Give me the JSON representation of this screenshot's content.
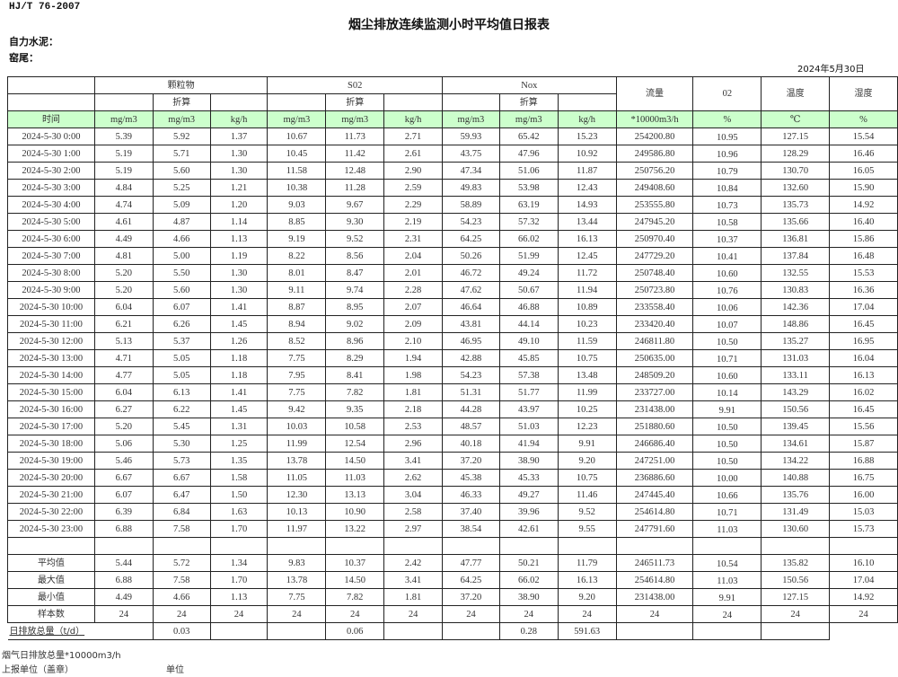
{
  "standard": "HJ/T  76-2007",
  "title": "烟尘排放连续监测小时平均值日报表",
  "company_label": "自力水泥：",
  "kiln_label": "窑尾：",
  "date": "2024年5月30日",
  "header": {
    "groups": [
      "颗粒物",
      "S02",
      "Nox"
    ],
    "converted": "折算",
    "single": [
      "流量",
      "02",
      "温度",
      "湿度"
    ],
    "units": [
      "时间",
      "mg/m3",
      "mg/m3",
      "kg/h",
      "mg/m3",
      "mg/m3",
      "kg/h",
      "mg/m3",
      "mg/m3",
      "kg/h",
      "*10000m3/h",
      "%",
      "℃",
      "%"
    ]
  },
  "rows": [
    [
      "2024-5-30 0:00",
      "5.39",
      "5.92",
      "1.37",
      "10.67",
      "11.73",
      "2.71",
      "59.93",
      "65.42",
      "15.23",
      "254200.80",
      "10.95",
      "127.15",
      "15.54"
    ],
    [
      "2024-5-30 1:00",
      "5.19",
      "5.71",
      "1.30",
      "10.45",
      "11.42",
      "2.61",
      "43.75",
      "47.96",
      "10.92",
      "249586.80",
      "10.96",
      "128.29",
      "16.46"
    ],
    [
      "2024-5-30 2:00",
      "5.19",
      "5.60",
      "1.30",
      "11.58",
      "12.48",
      "2.90",
      "47.34",
      "51.06",
      "11.87",
      "250756.20",
      "10.79",
      "130.70",
      "16.05"
    ],
    [
      "2024-5-30 3:00",
      "4.84",
      "5.25",
      "1.21",
      "10.38",
      "11.28",
      "2.59",
      "49.83",
      "53.98",
      "12.43",
      "249408.60",
      "10.84",
      "132.60",
      "15.90"
    ],
    [
      "2024-5-30 4:00",
      "4.74",
      "5.09",
      "1.20",
      "9.03",
      "9.67",
      "2.29",
      "58.89",
      "63.19",
      "14.93",
      "253555.80",
      "10.73",
      "135.73",
      "14.92"
    ],
    [
      "2024-5-30 5:00",
      "4.61",
      "4.87",
      "1.14",
      "8.85",
      "9.30",
      "2.19",
      "54.23",
      "57.32",
      "13.44",
      "247945.20",
      "10.58",
      "135.66",
      "16.40"
    ],
    [
      "2024-5-30 6:00",
      "4.49",
      "4.66",
      "1.13",
      "9.19",
      "9.52",
      "2.31",
      "64.25",
      "66.02",
      "16.13",
      "250970.40",
      "10.37",
      "136.81",
      "15.86"
    ],
    [
      "2024-5-30 7:00",
      "4.81",
      "5.00",
      "1.19",
      "8.22",
      "8.56",
      "2.04",
      "50.26",
      "51.99",
      "12.45",
      "247729.20",
      "10.41",
      "137.84",
      "16.48"
    ],
    [
      "2024-5-30 8:00",
      "5.20",
      "5.50",
      "1.30",
      "8.01",
      "8.47",
      "2.01",
      "46.72",
      "49.24",
      "11.72",
      "250748.40",
      "10.60",
      "132.55",
      "15.53"
    ],
    [
      "2024-5-30 9:00",
      "5.20",
      "5.60",
      "1.30",
      "9.11",
      "9.74",
      "2.28",
      "47.62",
      "50.67",
      "11.94",
      "250723.80",
      "10.76",
      "130.83",
      "16.36"
    ],
    [
      "2024-5-30 10:00",
      "6.04",
      "6.07",
      "1.41",
      "8.87",
      "8.95",
      "2.07",
      "46.64",
      "46.88",
      "10.89",
      "233558.40",
      "10.06",
      "142.36",
      "17.04"
    ],
    [
      "2024-5-30 11:00",
      "6.21",
      "6.26",
      "1.45",
      "8.94",
      "9.02",
      "2.09",
      "43.81",
      "44.14",
      "10.23",
      "233420.40",
      "10.07",
      "148.86",
      "16.45"
    ],
    [
      "2024-5-30 12:00",
      "5.13",
      "5.37",
      "1.26",
      "8.52",
      "8.96",
      "2.10",
      "46.95",
      "49.10",
      "11.59",
      "246811.80",
      "10.50",
      "135.27",
      "16.95"
    ],
    [
      "2024-5-30 13:00",
      "4.71",
      "5.05",
      "1.18",
      "7.75",
      "8.29",
      "1.94",
      "42.88",
      "45.85",
      "10.75",
      "250635.00",
      "10.71",
      "131.03",
      "16.04"
    ],
    [
      "2024-5-30 14:00",
      "4.77",
      "5.05",
      "1.18",
      "7.95",
      "8.41",
      "1.98",
      "54.23",
      "57.38",
      "13.48",
      "248509.20",
      "10.60",
      "133.11",
      "16.13"
    ],
    [
      "2024-5-30 15:00",
      "6.04",
      "6.13",
      "1.41",
      "7.75",
      "7.82",
      "1.81",
      "51.31",
      "51.77",
      "11.99",
      "233727.00",
      "10.14",
      "143.29",
      "16.02"
    ],
    [
      "2024-5-30 16:00",
      "6.27",
      "6.22",
      "1.45",
      "9.42",
      "9.35",
      "2.18",
      "44.28",
      "43.97",
      "10.25",
      "231438.00",
      "9.91",
      "150.56",
      "16.45"
    ],
    [
      "2024-5-30 17:00",
      "5.20",
      "5.45",
      "1.31",
      "10.03",
      "10.58",
      "2.53",
      "48.57",
      "51.03",
      "12.23",
      "251880.60",
      "10.50",
      "139.45",
      "15.56"
    ],
    [
      "2024-5-30 18:00",
      "5.06",
      "5.30",
      "1.25",
      "11.99",
      "12.54",
      "2.96",
      "40.18",
      "41.94",
      "9.91",
      "246686.40",
      "10.50",
      "134.61",
      "15.87"
    ],
    [
      "2024-5-30 19:00",
      "5.46",
      "5.73",
      "1.35",
      "13.78",
      "14.50",
      "3.41",
      "37.20",
      "38.90",
      "9.20",
      "247251.00",
      "10.50",
      "134.22",
      "16.88"
    ],
    [
      "2024-5-30 20:00",
      "6.67",
      "6.67",
      "1.58",
      "11.05",
      "11.03",
      "2.62",
      "45.38",
      "45.33",
      "10.75",
      "236886.60",
      "10.00",
      "140.88",
      "16.75"
    ],
    [
      "2024-5-30 21:00",
      "6.07",
      "6.47",
      "1.50",
      "12.30",
      "13.13",
      "3.04",
      "46.33",
      "49.27",
      "11.46",
      "247445.40",
      "10.66",
      "135.76",
      "16.00"
    ],
    [
      "2024-5-30 22:00",
      "6.39",
      "6.84",
      "1.63",
      "10.13",
      "10.90",
      "2.58",
      "37.40",
      "39.96",
      "9.52",
      "254614.80",
      "10.71",
      "131.49",
      "15.03"
    ],
    [
      "2024-5-30 23:00",
      "6.88",
      "7.58",
      "1.70",
      "11.97",
      "13.22",
      "2.97",
      "38.54",
      "42.61",
      "9.55",
      "247791.60",
      "11.03",
      "130.60",
      "15.73"
    ]
  ],
  "stats": [
    [
      "平均值",
      "5.44",
      "5.72",
      "1.34",
      "9.83",
      "10.37",
      "2.42",
      "47.77",
      "50.21",
      "11.79",
      "246511.73",
      "10.54",
      "135.82",
      "16.10"
    ],
    [
      "最大值",
      "6.88",
      "7.58",
      "1.70",
      "13.78",
      "14.50",
      "3.41",
      "64.25",
      "66.02",
      "16.13",
      "254614.80",
      "11.03",
      "150.56",
      "17.04"
    ],
    [
      "最小值",
      "4.49",
      "4.66",
      "1.13",
      "7.75",
      "7.82",
      "1.81",
      "37.20",
      "38.90",
      "9.20",
      "231438.00",
      "9.91",
      "127.15",
      "14.92"
    ],
    [
      "样本数",
      "24",
      "24",
      "24",
      "24",
      "24",
      "24",
      "24",
      "24",
      "24",
      "24",
      "24",
      "24",
      "24"
    ]
  ],
  "total": {
    "label": "日排放总量（t/d）",
    "values": [
      "0.03",
      "",
      "",
      "0.06",
      "",
      "",
      "0.28",
      "591.63",
      "",
      "",
      ""
    ]
  },
  "footer": {
    "flue_total": "烟气日排放总量*10000m3/h",
    "reporter": "上报单位（盖章）",
    "unit": "单位"
  }
}
